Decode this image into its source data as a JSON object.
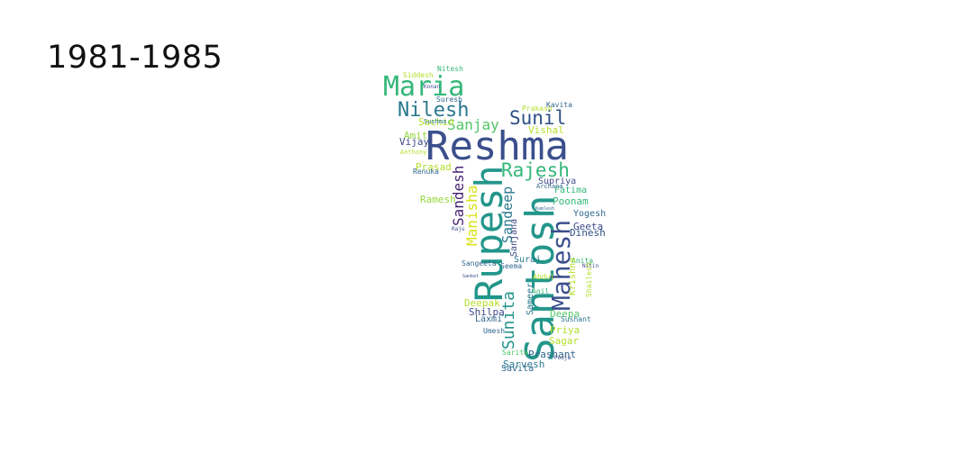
{
  "title": "1981-1985",
  "palette": {
    "dark": "#3b4f8c",
    "teal": "#23968b",
    "green": "#35b779",
    "lime": "#b5de2b",
    "yellow": "#d8e219",
    "navy": "#2d3f7a",
    "purple": "#482475"
  },
  "words": [
    {
      "text": "Reshma",
      "color": "#3b4f8c"
    },
    {
      "text": "Santosh",
      "color": "#23968b"
    },
    {
      "text": "Rupesh",
      "color": "#23968b"
    },
    {
      "text": "Mahesh",
      "color": "#3b4f8c"
    },
    {
      "text": "Maria",
      "color": "#35b779"
    },
    {
      "text": "Nilesh",
      "color": "#2a788e"
    },
    {
      "text": "Sunil",
      "color": "#2d4f86"
    },
    {
      "text": "Rajesh",
      "color": "#35b779"
    },
    {
      "text": "Sanjay",
      "color": "#54c568"
    },
    {
      "text": "Sandesh",
      "color": "#482475"
    },
    {
      "text": "Manisha",
      "color": "#d8e219"
    },
    {
      "text": "Sandeep",
      "color": "#2a788e"
    },
    {
      "text": "Sunita",
      "color": "#23968b"
    },
    {
      "text": "Sachin",
      "color": "#b5de2b"
    },
    {
      "text": "Amit",
      "color": "#95d840"
    },
    {
      "text": "Vijay",
      "color": "#3e4a89"
    },
    {
      "text": "Prasad",
      "color": "#b5de2b"
    },
    {
      "text": "Renuka",
      "color": "#31688e"
    },
    {
      "text": "Ramesh",
      "color": "#95d840"
    },
    {
      "text": "Siddesh",
      "color": "#b5de2b"
    },
    {
      "text": "Nitesh",
      "color": "#35b779"
    },
    {
      "text": "Konan",
      "color": "#3e4a89"
    },
    {
      "text": "Suresh",
      "color": "#31688e"
    },
    {
      "text": "Sushma",
      "color": "#2a788e"
    },
    {
      "text": "Anthony",
      "color": "#b5de2b"
    },
    {
      "text": "Prakash",
      "color": "#b5de2b"
    },
    {
      "text": "Kavita",
      "color": "#31688e"
    },
    {
      "text": "Vishal",
      "color": "#b5de2b"
    },
    {
      "text": "Supriya",
      "color": "#3e4a89"
    },
    {
      "text": "Fatima",
      "color": "#35b779"
    },
    {
      "text": "Poonam",
      "color": "#35b779"
    },
    {
      "text": "Yogesh",
      "color": "#31688e"
    },
    {
      "text": "Geeta",
      "color": "#3e4a89"
    },
    {
      "text": "Dinesh",
      "color": "#2d4f86"
    },
    {
      "text": "Anita",
      "color": "#35b779"
    },
    {
      "text": "Nitin",
      "color": "#3e4a89"
    },
    {
      "text": "Krishna",
      "color": "#b5de2b"
    },
    {
      "text": "Shailesh",
      "color": "#b5de2b"
    },
    {
      "text": "Deepa",
      "color": "#54c568"
    },
    {
      "text": "Sushant",
      "color": "#2a788e"
    },
    {
      "text": "Priya",
      "color": "#b5de2b"
    },
    {
      "text": "Sagar",
      "color": "#b5de2b"
    },
    {
      "text": "Prashant",
      "color": "#31688e"
    },
    {
      "text": "Sarita",
      "color": "#54c568"
    },
    {
      "text": "Sarvesh",
      "color": "#2a788e"
    },
    {
      "text": "Savita",
      "color": "#31688e"
    },
    {
      "text": "Pooja",
      "color": "#3e4a89"
    },
    {
      "text": "Sangeeta",
      "color": "#31688e"
    },
    {
      "text": "Suraj",
      "color": "#2a788e"
    },
    {
      "text": "Seema",
      "color": "#31688e"
    },
    {
      "text": "Deepak",
      "color": "#b5de2b"
    },
    {
      "text": "Sameer",
      "color": "#2a788e"
    },
    {
      "text": "Abdul",
      "color": "#b5de2b"
    },
    {
      "text": "Anil",
      "color": "#35b779"
    },
    {
      "text": "Shilpa",
      "color": "#3e4a89"
    },
    {
      "text": "Laxmi",
      "color": "#31688e"
    },
    {
      "text": "Umesh",
      "color": "#31688e"
    },
    {
      "text": "Sanjana",
      "color": "#3e4a89"
    },
    {
      "text": "Archana",
      "color": "#31688e"
    },
    {
      "text": "Raju",
      "color": "#3e4a89"
    },
    {
      "text": "Kamlesh",
      "color": "#31688e"
    },
    {
      "text": "Sanket",
      "color": "#3e4a89"
    }
  ]
}
